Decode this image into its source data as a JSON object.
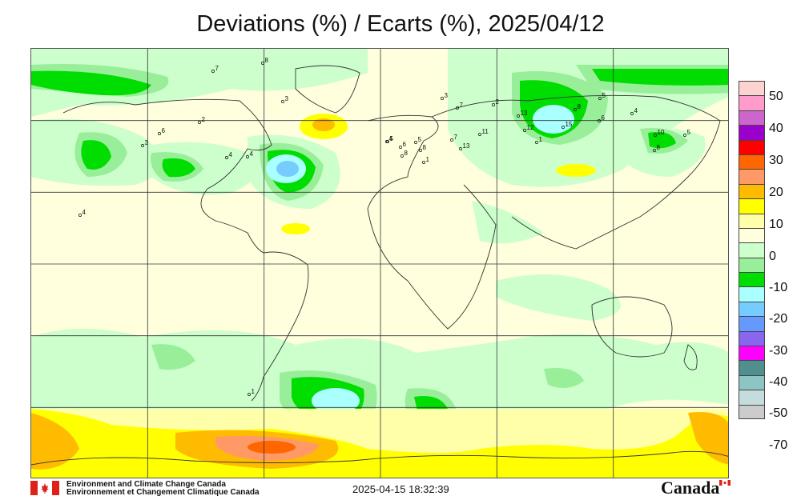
{
  "title": "Deviations (%) / Ecarts (%), 2025/04/12",
  "footer": {
    "org_en": "Environment and Climate Change Canada",
    "org_fr": "Environnement et Changement Climatique Canada",
    "timestamp": "2025-04-15 18:32:39",
    "wordmark": "Canada"
  },
  "legend": {
    "colors": [
      "#ffd2d2",
      "#ff9ccc",
      "#cc66cc",
      "#9900cc",
      "#ff0000",
      "#ff6600",
      "#ff9966",
      "#ffbb00",
      "#ffff00",
      "#ffffaa",
      "#ffffdd",
      "#ccffcc",
      "#99ee99",
      "#00dd00",
      "#aaffff",
      "#77ccff",
      "#6699ff",
      "#8866ee",
      "#ff00ff",
      "#4f8f8f",
      "#8fc4c4",
      "#c4dcdc",
      "#cccccc"
    ],
    "labels": [
      "50",
      "40",
      "30",
      "20",
      "10",
      "0",
      "-10",
      "-20",
      "-30",
      "-40",
      "-50",
      "-70"
    ]
  },
  "stations": [
    {
      "v": "8"
    },
    {
      "v": "7"
    },
    {
      "v": "3"
    },
    {
      "v": "2"
    },
    {
      "v": "6"
    },
    {
      "v": "3"
    },
    {
      "v": "4"
    },
    {
      "v": "4"
    },
    {
      "v": "3"
    },
    {
      "v": "7"
    },
    {
      "v": "2"
    },
    {
      "v": "13"
    },
    {
      "v": "12"
    },
    {
      "v": "15"
    },
    {
      "v": "8"
    },
    {
      "v": "5"
    },
    {
      "v": "4"
    },
    {
      "v": "6"
    },
    {
      "v": "10"
    },
    {
      "v": "8"
    },
    {
      "v": "5"
    },
    {
      "v": "1"
    },
    {
      "v": "11"
    },
    {
      "v": "13"
    },
    {
      "v": "7"
    },
    {
      "v": "5"
    },
    {
      "v": "6"
    },
    {
      "v": "8"
    },
    {
      "v": "8"
    },
    {
      "v": "5"
    },
    {
      "v": "4"
    },
    {
      "v": "1"
    },
    {
      "v": "4"
    },
    {
      "v": "1"
    }
  ]
}
